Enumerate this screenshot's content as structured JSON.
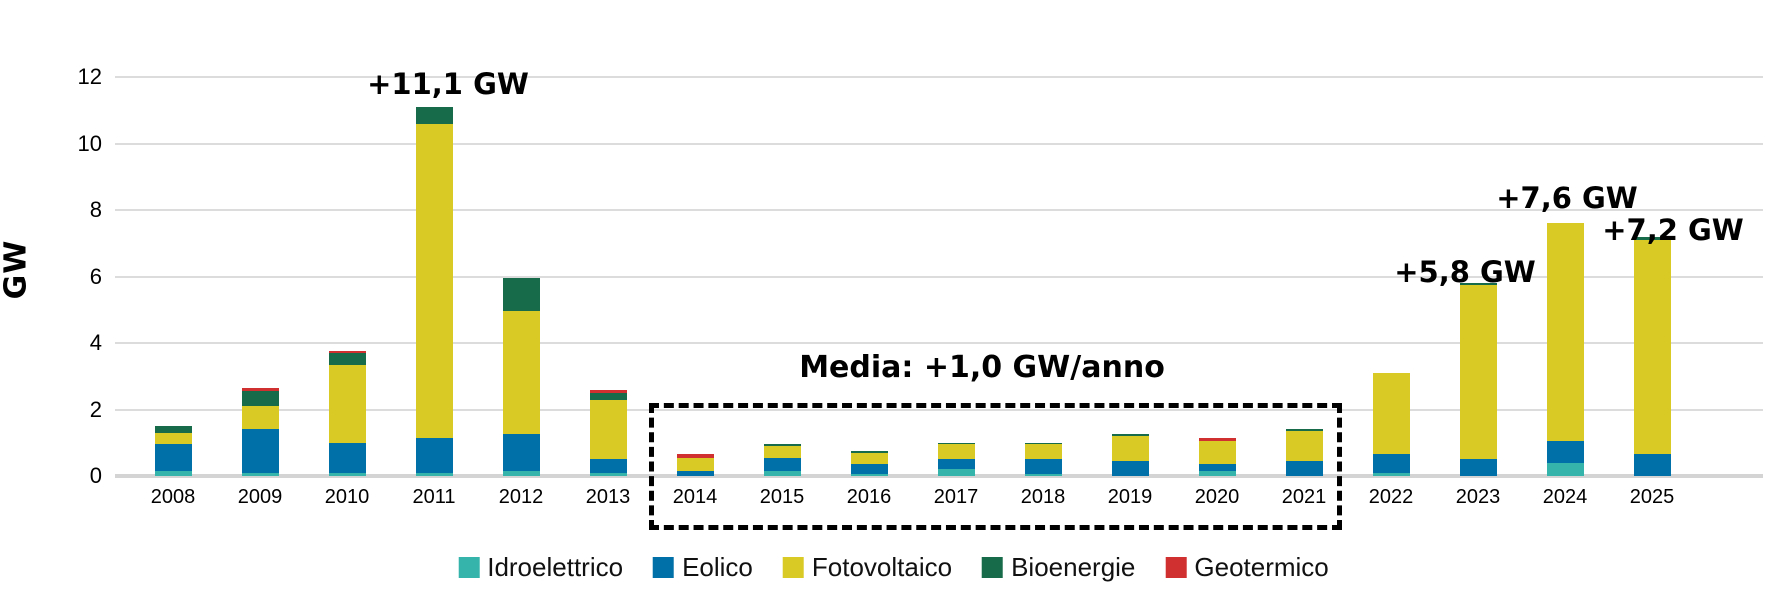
{
  "y_axis": {
    "title": "GW",
    "tick_labels": [
      "0",
      "2",
      "4",
      "6",
      "8",
      "10",
      "12"
    ],
    "tick_values": [
      0,
      2,
      4,
      6,
      8,
      10,
      12
    ]
  },
  "chart_data": {
    "type": "bar",
    "stacked": true,
    "unit": "GW",
    "grid": true,
    "legend_position": "bottom",
    "ylim": [
      0,
      12.5
    ],
    "categories": [
      "2008",
      "2009",
      "2010",
      "2011",
      "2012",
      "2013",
      "2014",
      "2015",
      "2016",
      "2017",
      "2018",
      "2019",
      "2020",
      "2021",
      "2022",
      "2023",
      "2024",
      "2025"
    ],
    "series": [
      {
        "name": "Idroelettrico",
        "color": "#35b4ab",
        "values": [
          0.15,
          0.1,
          0.1,
          0.1,
          0.15,
          0.1,
          0.0,
          0.15,
          0.05,
          0.2,
          0.05,
          0.0,
          0.15,
          0.0,
          0.1,
          0.0,
          0.4,
          0.0
        ]
      },
      {
        "name": "Eolico",
        "color": "#0070a8",
        "values": [
          0.8,
          1.3,
          0.9,
          1.05,
          1.1,
          0.4,
          0.15,
          0.4,
          0.3,
          0.3,
          0.45,
          0.45,
          0.2,
          0.45,
          0.55,
          0.5,
          0.65,
          0.65
        ]
      },
      {
        "name": "Fotovoltaico",
        "color": "#d9ca26",
        "values": [
          0.35,
          0.7,
          2.35,
          9.45,
          3.7,
          1.8,
          0.4,
          0.35,
          0.35,
          0.45,
          0.45,
          0.75,
          0.7,
          0.9,
          2.45,
          5.25,
          6.55,
          6.45
        ]
      },
      {
        "name": "Bioenergie",
        "color": "#176a4a",
        "values": [
          0.2,
          0.45,
          0.35,
          0.5,
          1.0,
          0.2,
          0.0,
          0.05,
          0.05,
          0.05,
          0.05,
          0.05,
          0.0,
          0.05,
          0.0,
          0.05,
          0.0,
          0.1
        ]
      },
      {
        "name": "Geotermico",
        "color": "#d13030",
        "values": [
          0.0,
          0.1,
          0.05,
          0.0,
          0.0,
          0.1,
          0.1,
          0.0,
          0.0,
          0.0,
          0.0,
          0.0,
          0.1,
          0.0,
          0.0,
          0.0,
          0.0,
          0.0
        ]
      }
    ],
    "totals_gw": [
      1.5,
      2.65,
      3.75,
      11.1,
      5.95,
      2.6,
      0.65,
      0.95,
      0.75,
      1.0,
      1.0,
      1.25,
      1.15,
      1.4,
      3.1,
      5.8,
      7.6,
      7.2
    ],
    "annotations": [
      {
        "label": "+11,1 GW",
        "year": "2011",
        "value_gw": 11.1
      },
      {
        "label": "+5,8 GW",
        "year": "2023",
        "value_gw": 5.8
      },
      {
        "label": "+7,6 GW",
        "year": "2024",
        "value_gw": 7.6
      },
      {
        "label": "+7,2 GW",
        "year": "2025",
        "value_gw": 7.2
      }
    ],
    "highlight_box": {
      "label": "Media: +1,0 GW/anno",
      "from_year": "2014",
      "to_year": "2021"
    }
  }
}
